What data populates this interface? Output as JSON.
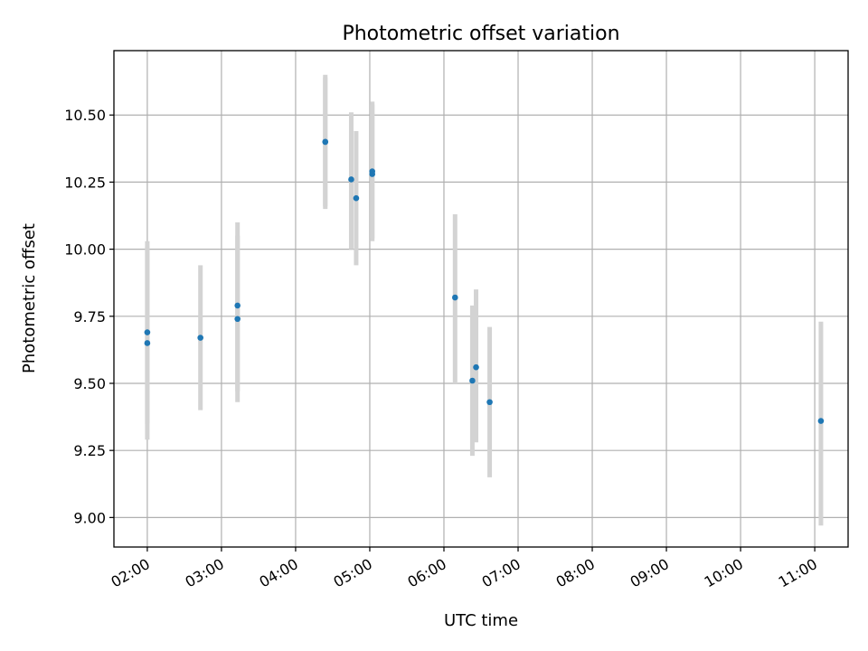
{
  "chart_data": {
    "type": "scatter",
    "title": "Photometric offset variation",
    "xlabel": "UTC time",
    "ylabel": "Photometric offset",
    "grid": true,
    "xlim": [
      "01:33",
      "11:27"
    ],
    "ylim": [
      8.89,
      10.74
    ],
    "x_ticks": [
      "02:00",
      "03:00",
      "04:00",
      "05:00",
      "06:00",
      "07:00",
      "08:00",
      "09:00",
      "10:00",
      "11:00"
    ],
    "y_ticks": [
      "9.00",
      "9.25",
      "9.50",
      "9.75",
      "10.00",
      "10.25",
      "10.50"
    ],
    "points": [
      {
        "x": "02:00",
        "y": 9.69,
        "lo": 9.35,
        "hi": 10.03
      },
      {
        "x": "02:00",
        "y": 9.65,
        "lo": 9.29,
        "hi": 10.01
      },
      {
        "x": "02:43",
        "y": 9.67,
        "lo": 9.4,
        "hi": 9.94
      },
      {
        "x": "03:13",
        "y": 9.79,
        "lo": 9.47,
        "hi": 10.1
      },
      {
        "x": "03:13",
        "y": 9.74,
        "lo": 9.43,
        "hi": 10.05
      },
      {
        "x": "04:24",
        "y": 10.4,
        "lo": 10.16,
        "hi": 10.65
      },
      {
        "x": "04:24",
        "y": 10.4,
        "lo": 10.15,
        "hi": 10.64
      },
      {
        "x": "04:45",
        "y": 10.26,
        "lo": 10.0,
        "hi": 10.51
      },
      {
        "x": "04:49",
        "y": 10.19,
        "lo": 9.94,
        "hi": 10.44
      },
      {
        "x": "05:02",
        "y": 10.28,
        "lo": 10.03,
        "hi": 10.54
      },
      {
        "x": "05:02",
        "y": 10.29,
        "lo": 10.04,
        "hi": 10.55
      },
      {
        "x": "06:09",
        "y": 9.82,
        "lo": 9.5,
        "hi": 10.13
      },
      {
        "x": "06:23",
        "y": 9.51,
        "lo": 9.23,
        "hi": 9.79
      },
      {
        "x": "06:26",
        "y": 9.56,
        "lo": 9.28,
        "hi": 9.85
      },
      {
        "x": "06:37",
        "y": 9.43,
        "lo": 9.15,
        "hi": 9.71
      },
      {
        "x": "11:05",
        "y": 9.36,
        "lo": 8.97,
        "hi": 9.73
      }
    ]
  }
}
